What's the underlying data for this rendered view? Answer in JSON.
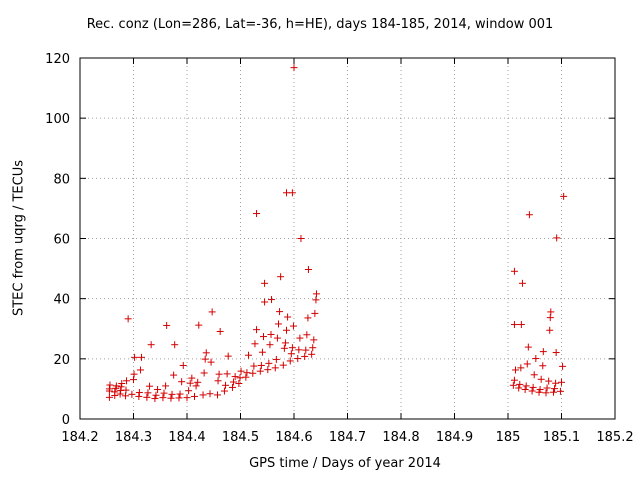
{
  "chart_data": {
    "type": "scatter",
    "title": "Rec. conz (Lon=286, Lat=-36, h=HE), days 184-185, 2014, window 001",
    "xlabel": "GPS time / Days of year 2014",
    "ylabel": "STEC from uqrg / TECUs",
    "xlim": [
      184.2,
      185.2
    ],
    "ylim": [
      0,
      120
    ],
    "xticks": [
      "184.2",
      "184.3",
      "184.4",
      "184.5",
      "184.6",
      "184.7",
      "184.8",
      "184.9",
      "185",
      "185.1",
      "185.2"
    ],
    "yticks": [
      "0",
      "20",
      "40",
      "60",
      "80",
      "100",
      "120"
    ],
    "grid": true,
    "marker": "plus",
    "color": "#d40000",
    "points": [
      [
        184.255,
        7.2
      ],
      [
        184.255,
        9.3
      ],
      [
        184.255,
        10.0
      ],
      [
        184.256,
        11.3
      ],
      [
        184.265,
        7.8
      ],
      [
        184.265,
        9.0
      ],
      [
        184.267,
        10.2
      ],
      [
        184.268,
        11.0
      ],
      [
        184.275,
        8.3
      ],
      [
        184.276,
        9.5
      ],
      [
        184.277,
        10.7
      ],
      [
        184.278,
        11.8
      ],
      [
        184.285,
        7.7
      ],
      [
        184.286,
        9.6
      ],
      [
        184.287,
        12.7
      ],
      [
        184.29,
        33.3
      ],
      [
        184.297,
        8.2
      ],
      [
        184.3,
        13.1
      ],
      [
        184.301,
        14.9
      ],
      [
        184.302,
        20.5
      ],
      [
        184.31,
        7.5
      ],
      [
        184.311,
        8.8
      ],
      [
        184.313,
        16.3
      ],
      [
        184.315,
        20.5
      ],
      [
        184.325,
        7.2
      ],
      [
        184.327,
        8.7
      ],
      [
        184.33,
        10.9
      ],
      [
        184.333,
        24.7
      ],
      [
        184.34,
        6.8
      ],
      [
        184.342,
        7.9
      ],
      [
        184.345,
        9.8
      ],
      [
        184.355,
        7.1
      ],
      [
        184.357,
        8.6
      ],
      [
        184.36,
        11.0
      ],
      [
        184.362,
        31.1
      ],
      [
        184.37,
        6.9
      ],
      [
        184.372,
        8.2
      ],
      [
        184.375,
        14.6
      ],
      [
        184.377,
        24.7
      ],
      [
        184.385,
        7.0
      ],
      [
        184.387,
        8.3
      ],
      [
        184.39,
        12.4
      ],
      [
        184.393,
        17.8
      ],
      [
        184.4,
        7.1
      ],
      [
        184.403,
        9.4
      ],
      [
        184.406,
        11.9
      ],
      [
        184.409,
        13.6
      ],
      [
        184.414,
        7.5
      ],
      [
        184.417,
        11.0
      ],
      [
        184.42,
        12.2
      ],
      [
        184.422,
        31.2
      ],
      [
        184.43,
        8.0
      ],
      [
        184.432,
        15.3
      ],
      [
        184.434,
        19.9
      ],
      [
        184.436,
        22.0
      ],
      [
        184.443,
        8.4
      ],
      [
        184.445,
        18.9
      ],
      [
        184.447,
        35.6
      ],
      [
        184.457,
        8.0
      ],
      [
        184.458,
        12.7
      ],
      [
        184.46,
        14.9
      ],
      [
        184.462,
        29.1
      ],
      [
        184.47,
        9.3
      ],
      [
        184.472,
        11.2
      ],
      [
        184.475,
        15.0
      ],
      [
        184.477,
        20.9
      ],
      [
        184.485,
        10.5
      ],
      [
        184.487,
        12.3
      ],
      [
        184.49,
        14.1
      ],
      [
        184.497,
        11.8
      ],
      [
        184.499,
        13.7
      ],
      [
        184.501,
        15.9
      ],
      [
        184.51,
        13.9
      ],
      [
        184.512,
        15.4
      ],
      [
        184.515,
        21.2
      ],
      [
        184.523,
        15.2
      ],
      [
        184.525,
        17.6
      ],
      [
        184.527,
        25.0
      ],
      [
        184.53,
        29.7
      ],
      [
        184.53,
        68.3
      ],
      [
        184.537,
        15.9
      ],
      [
        184.539,
        17.8
      ],
      [
        184.541,
        22.2
      ],
      [
        184.543,
        27.4
      ],
      [
        184.545,
        45.1
      ],
      [
        184.545,
        38.9
      ],
      [
        184.551,
        16.4
      ],
      [
        184.553,
        18.5
      ],
      [
        184.555,
        24.7
      ],
      [
        184.557,
        28.1
      ],
      [
        184.558,
        39.7
      ],
      [
        184.565,
        17.0
      ],
      [
        184.567,
        19.8
      ],
      [
        184.569,
        26.9
      ],
      [
        184.571,
        31.6
      ],
      [
        184.573,
        35.7
      ],
      [
        184.575,
        47.3
      ],
      [
        184.58,
        17.9
      ],
      [
        184.582,
        23.5
      ],
      [
        184.584,
        25.3
      ],
      [
        184.586,
        29.5
      ],
      [
        184.588,
        33.9
      ],
      [
        184.586,
        75.2
      ],
      [
        184.593,
        19.3
      ],
      [
        184.595,
        21.7
      ],
      [
        184.597,
        23.7
      ],
      [
        184.599,
        30.9
      ],
      [
        184.597,
        75.2
      ],
      [
        184.6,
        116.8
      ],
      [
        184.607,
        20.1
      ],
      [
        184.609,
        23.0
      ],
      [
        184.611,
        26.9
      ],
      [
        184.613,
        60.0
      ],
      [
        184.62,
        20.8
      ],
      [
        184.622,
        22.9
      ],
      [
        184.624,
        28.0
      ],
      [
        184.626,
        33.6
      ],
      [
        184.627,
        49.7
      ],
      [
        184.633,
        21.5
      ],
      [
        184.635,
        23.7
      ],
      [
        184.637,
        26.3
      ],
      [
        184.639,
        35.1
      ],
      [
        184.641,
        39.6
      ],
      [
        184.642,
        41.6
      ],
      [
        185.01,
        11.2
      ],
      [
        185.012,
        12.9
      ],
      [
        185.014,
        16.3
      ],
      [
        185.012,
        31.4
      ],
      [
        185.012,
        49.1
      ],
      [
        185.02,
        10.3
      ],
      [
        185.022,
        11.5
      ],
      [
        185.024,
        17.0
      ],
      [
        185.025,
        31.4
      ],
      [
        185.027,
        45.1
      ],
      [
        185.032,
        9.8
      ],
      [
        185.034,
        11.0
      ],
      [
        185.036,
        18.3
      ],
      [
        185.038,
        23.9
      ],
      [
        185.04,
        67.9
      ],
      [
        185.045,
        9.3
      ],
      [
        185.047,
        10.5
      ],
      [
        185.049,
        14.7
      ],
      [
        185.052,
        20.1
      ],
      [
        185.058,
        8.9
      ],
      [
        185.06,
        9.8
      ],
      [
        185.062,
        13.2
      ],
      [
        185.065,
        17.7
      ],
      [
        185.066,
        22.4
      ],
      [
        185.071,
        8.7
      ],
      [
        185.073,
        10.3
      ],
      [
        185.076,
        12.6
      ],
      [
        185.078,
        29.5
      ],
      [
        185.079,
        33.7
      ],
      [
        185.08,
        35.6
      ],
      [
        185.085,
        8.9
      ],
      [
        185.087,
        10.1
      ],
      [
        185.089,
        11.9
      ],
      [
        185.09,
        22.1
      ],
      [
        185.091,
        60.2
      ],
      [
        185.098,
        9.2
      ],
      [
        185.1,
        12.2
      ],
      [
        185.102,
        17.5
      ],
      [
        185.104,
        74.0
      ]
    ]
  }
}
